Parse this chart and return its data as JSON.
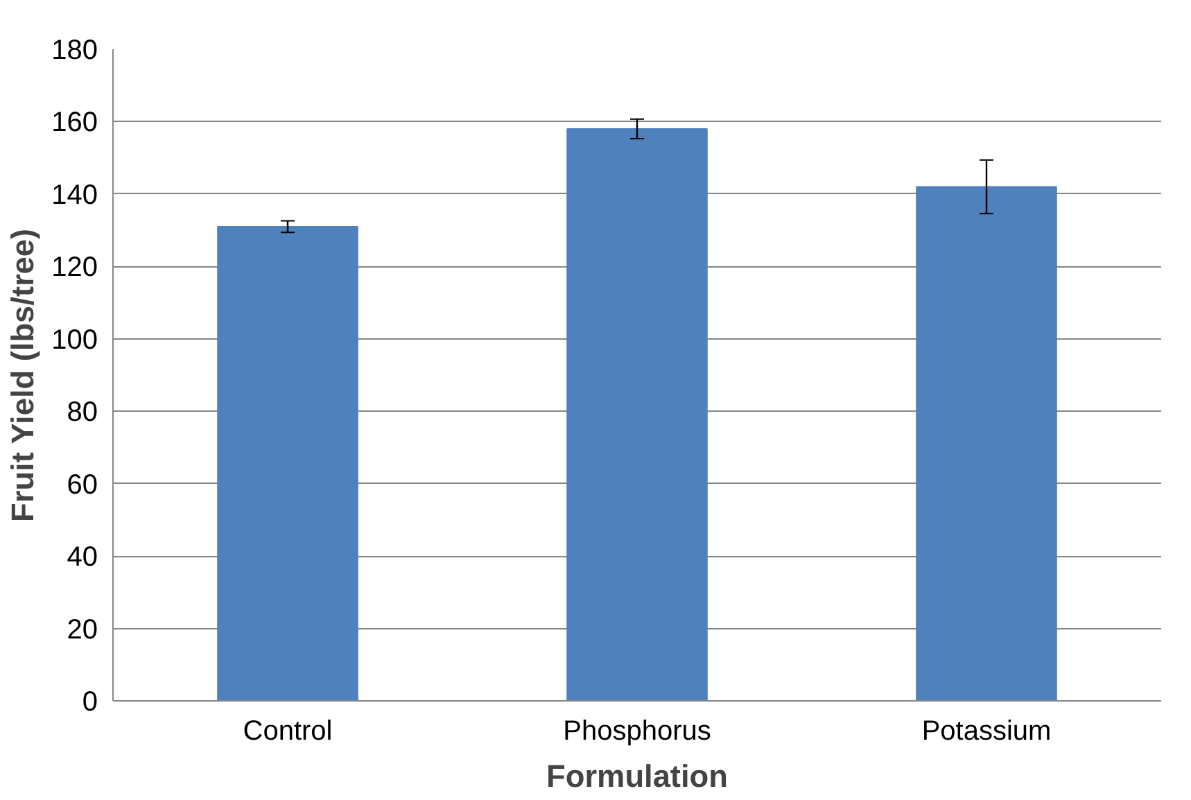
{
  "chart_data": {
    "type": "bar",
    "xlabel": "Formulation",
    "ylabel": "Fruit Yield (lbs/tree)",
    "categories": [
      "Control",
      "Phosphorus",
      "Potassium"
    ],
    "values": [
      131,
      158,
      142
    ],
    "color": "#4f81bd",
    "errors": [
      1.6,
      2.7,
      7.4
    ],
    "ylim": [
      0,
      180
    ],
    "yticks": [
      0,
      20,
      40,
      60,
      80,
      100,
      120,
      140,
      160,
      180
    ],
    "grid": "y"
  }
}
